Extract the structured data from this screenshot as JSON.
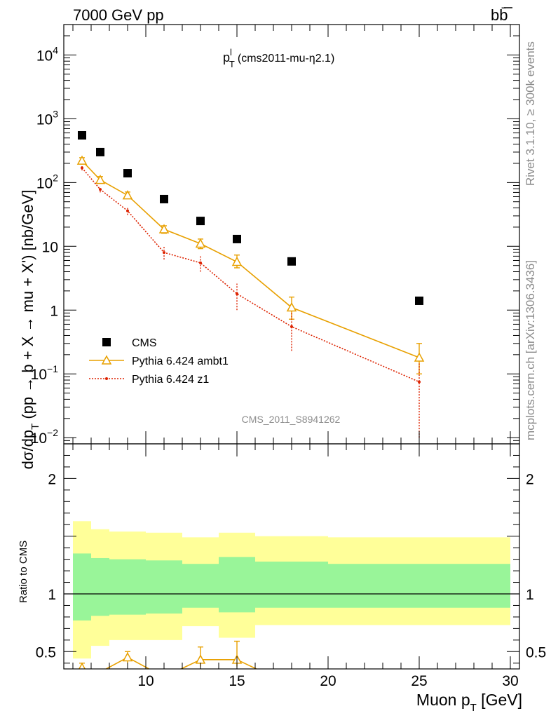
{
  "header": {
    "energy_label": "7000 GeV pp",
    "process_label": "bb̄",
    "side_text_top": "Rivet 3.1.10, ≥ 300k events",
    "side_text_bottom": "mcplots.cern.ch [arXiv:1306.3436]"
  },
  "chart_data": [
    {
      "type": "scatter",
      "title": "p_T^l (cms2011-mu-η2.1)",
      "ylabel": "dσ/dp_T (pp → b + X → mu + X') [nb/GeV]",
      "yscale": "log",
      "ylim": [
        0.008,
        30000
      ],
      "xlim": [
        5.5,
        30.5
      ],
      "watermark": "CMS_2011_S8941262",
      "legend_position": "lower-left",
      "series": [
        {
          "name": "CMS",
          "color": "#000000",
          "marker": "square",
          "x": [
            6.5,
            7.5,
            9,
            11,
            13,
            15,
            18,
            25
          ],
          "y": [
            550,
            300,
            140,
            55,
            25,
            13,
            5.8,
            1.4
          ]
        },
        {
          "name": "Pythia 6.424 ambt1",
          "color": "#e8a000",
          "marker": "open-triangle",
          "line": "solid",
          "x": [
            6.5,
            7.5,
            9,
            11,
            13,
            15,
            18,
            25
          ],
          "y": [
            220,
            110,
            63,
            18.5,
            11,
            5.7,
            1.1,
            0.18
          ],
          "y_err_low": [
            200,
            98,
            56,
            16,
            9.2,
            4.6,
            0.72,
            0.1
          ],
          "y_err_high": [
            245,
            124,
            71,
            21,
            13,
            7.3,
            1.6,
            0.3
          ]
        },
        {
          "name": "Pythia 6.424 z1",
          "color": "#dd2200",
          "marker": "dot",
          "line": "dotted",
          "x": [
            6.5,
            7.5,
            9,
            11,
            13,
            15,
            18,
            25
          ],
          "y": [
            170,
            78,
            36,
            8,
            5.5,
            1.8,
            0.55,
            0.075
          ],
          "y_err_low": [
            155,
            70,
            31,
            6.2,
            4,
            1,
            0.23,
            0.01
          ],
          "y_err_high": [
            185,
            86,
            41,
            10,
            7,
            2.6,
            0.95,
            0.145
          ]
        }
      ],
      "y_ticks": [
        {
          "value": 0.01,
          "label": "10",
          "exp": "−2"
        },
        {
          "value": 0.1,
          "label": "10",
          "exp": "−1"
        },
        {
          "value": 1,
          "label": "1",
          "exp": ""
        },
        {
          "value": 10,
          "label": "10",
          "exp": ""
        },
        {
          "value": 100,
          "label": "10",
          "exp": "2"
        },
        {
          "value": 1000,
          "label": "10",
          "exp": "3"
        },
        {
          "value": 10000,
          "label": "10",
          "exp": "4"
        }
      ]
    },
    {
      "type": "area",
      "ylabel": "Ratio to CMS",
      "xlabel": "Muon p_T [GeV]",
      "xlim": [
        5.5,
        30.5
      ],
      "ylim": [
        0.35,
        2.3
      ],
      "reference_line": 1,
      "x_ticks": [
        10,
        15,
        20,
        25,
        30
      ],
      "y_ticks": [
        {
          "value": 0.5,
          "label": "0.5"
        },
        {
          "value": 1,
          "label": "1"
        },
        {
          "value": 2,
          "label": "2"
        }
      ],
      "bands": {
        "bin_edges": [
          6,
          7,
          8,
          10,
          12,
          14,
          16,
          20,
          30
        ],
        "inner_low": [
          0.77,
          0.81,
          0.82,
          0.83,
          0.88,
          0.84,
          0.88,
          0.88,
          0.87
        ],
        "inner_high": [
          1.35,
          1.31,
          1.3,
          1.29,
          1.26,
          1.32,
          1.28,
          1.26,
          1.22
        ],
        "outer_low": [
          0.44,
          0.55,
          0.6,
          0.6,
          0.72,
          0.62,
          0.73,
          0.73,
          0.72
        ],
        "outer_high": [
          1.63,
          1.56,
          1.54,
          1.53,
          1.49,
          1.53,
          1.5,
          1.49,
          1.45
        ],
        "inner_color": "#99f599",
        "outer_color": "#ffff99"
      },
      "series": [
        {
          "name": "Pythia 6.424 ambt1",
          "color": "#e8a000",
          "x": [
            6.5,
            9,
            13,
            15
          ],
          "y": [
            0.36,
            0.45,
            0.43,
            0.43
          ],
          "y_err_low": [
            0.33,
            0.4,
            0.37,
            0.37
          ],
          "y_err_high": [
            0.4,
            0.5,
            0.54,
            0.59
          ]
        }
      ]
    }
  ]
}
